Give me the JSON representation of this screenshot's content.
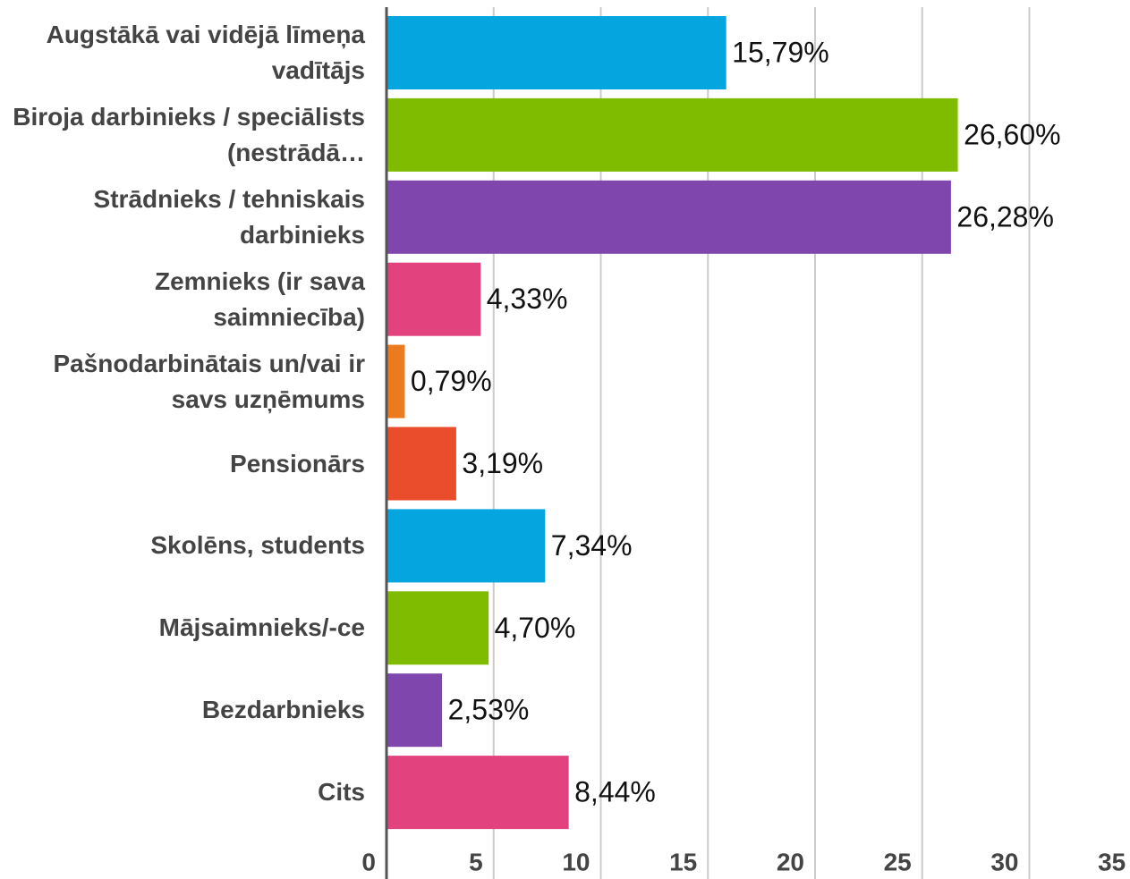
{
  "chart_data": {
    "type": "bar",
    "orientation": "horizontal",
    "categories": [
      "Augstākā vai vidējā līmeņa vadītājs",
      "Biroja darbinieks / speciālists (nestrādā…",
      "Strādnieks / tehniskais darbinieks",
      "Zemnieks (ir sava saimniecība)",
      "Pašnodarbinātais un/vai ir savs uzņēmums",
      "Pensionārs",
      "Skolēns, students",
      "Mājsaimnieks/-ce",
      "Bezdarbnieks",
      "Cits"
    ],
    "values": [
      15.79,
      26.6,
      26.28,
      4.33,
      0.79,
      3.19,
      7.34,
      4.7,
      2.53,
      8.44
    ],
    "value_labels": [
      "15,79%",
      "26,60%",
      "26,28%",
      "4,33%",
      "0,79%",
      "3,19%",
      "7,34%",
      "4,70%",
      "2,53%",
      "8,44%"
    ],
    "colors": [
      "#05a6e0",
      "#7fbc00",
      "#7f47ad",
      "#e2437f",
      "#ec7a1f",
      "#ea4d2c",
      "#05a6e0",
      "#7fbc00",
      "#7f47ad",
      "#e2437f"
    ],
    "xlim": [
      0,
      35
    ],
    "xticks": [
      0,
      5,
      10,
      15,
      20,
      25,
      30,
      35
    ],
    "grid": true
  }
}
